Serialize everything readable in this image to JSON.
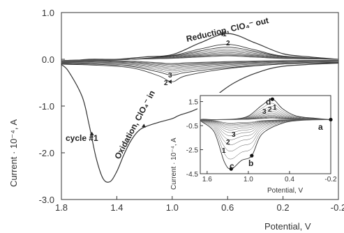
{
  "chart_data": [
    {
      "type": "line",
      "xlabel": "Potential, V",
      "ylabel": "Current · 10⁻⁴, A",
      "xlim": [
        1.8,
        -0.2
      ],
      "ylim": [
        -3.0,
        1.0
      ],
      "xticks": [
        "1.8",
        "1.4",
        "1.0",
        "0.6",
        "0.2",
        "-0.2"
      ],
      "yticks": [
        "1.0",
        "0.0",
        "-1.0",
        "-2.0",
        "-3.0"
      ],
      "annotations": {
        "reduction": "Reduction, ClO₄⁻ out",
        "oxidation": "Oxidation, ClO₄⁻ in",
        "cycle1": "cycle #1",
        "cycle_labels": [
          "1",
          "2",
          "3",
          "2",
          "3"
        ]
      },
      "series": [
        {
          "x": [
            -0.2,
            0.2,
            0.4,
            0.55,
            0.65,
            0.75,
            0.85,
            0.95,
            1.0,
            1.1,
            1.2,
            1.25,
            1.3,
            1.35,
            1.4,
            1.45,
            1.5,
            1.55,
            1.6,
            1.65,
            1.75,
            1.8,
            1.75,
            1.6,
            1.4,
            1.2,
            1.0,
            0.8,
            0.6,
            0.4,
            0.2,
            0.0,
            -0.2
          ],
          "y": [
            -0.08,
            -0.15,
            -0.3,
            -0.5,
            -0.7,
            -0.95,
            -1.1,
            -1.2,
            -1.27,
            -1.35,
            -1.45,
            -1.55,
            -1.75,
            -2.05,
            -2.4,
            -2.62,
            -2.55,
            -2.1,
            -1.4,
            -0.8,
            -0.25,
            -0.1,
            -0.05,
            0.0,
            0.0,
            0.05,
            0.1,
            0.35,
            0.55,
            0.35,
            0.12,
            0.05,
            0.0
          ]
        },
        {
          "x": [
            -0.2,
            0.2,
            0.6,
            0.9,
            1.0,
            1.1,
            1.3,
            1.6,
            1.8,
            1.6,
            1.3,
            1.0,
            0.8,
            0.6,
            0.4,
            0.2,
            -0.2
          ],
          "y": [
            -0.07,
            -0.1,
            -0.2,
            -0.35,
            -0.48,
            -0.35,
            -0.18,
            -0.12,
            -0.1,
            -0.04,
            0.0,
            0.08,
            0.22,
            0.32,
            0.2,
            0.07,
            0.0
          ]
        },
        {
          "x": [
            -0.2,
            0.2,
            0.6,
            0.9,
            1.0,
            1.1,
            1.3,
            1.6,
            1.8,
            1.6,
            1.3,
            1.0,
            0.8,
            0.6,
            0.4,
            0.2,
            -0.2
          ],
          "y": [
            -0.07,
            -0.1,
            -0.18,
            -0.28,
            -0.34,
            -0.27,
            -0.15,
            -0.1,
            -0.09,
            -0.03,
            0.0,
            0.07,
            0.18,
            0.26,
            0.17,
            0.06,
            0.0
          ]
        }
      ]
    },
    {
      "type": "line",
      "xlabel": "Potential, V",
      "ylabel": "Current · 10⁻⁴, A",
      "xlim": [
        1.7,
        -0.2
      ],
      "ylim": [
        -4.5,
        2.0
      ],
      "xticks": [
        "1.6",
        "1.0",
        "0.4",
        "-0.2"
      ],
      "yticks": [
        "1.5",
        "-0.5",
        "-2.5",
        "-4.5"
      ],
      "point_labels": [
        "a",
        "b",
        "c",
        "d"
      ],
      "cycle_labels": [
        "1",
        "2",
        "3",
        "3",
        "2",
        "1"
      ],
      "points": {
        "a": [
          -0.2,
          0.0
        ],
        "b": [
          0.95,
          -3.0
        ],
        "c": [
          1.25,
          -4.1
        ],
        "d": [
          0.65,
          1.7
        ]
      }
    }
  ]
}
